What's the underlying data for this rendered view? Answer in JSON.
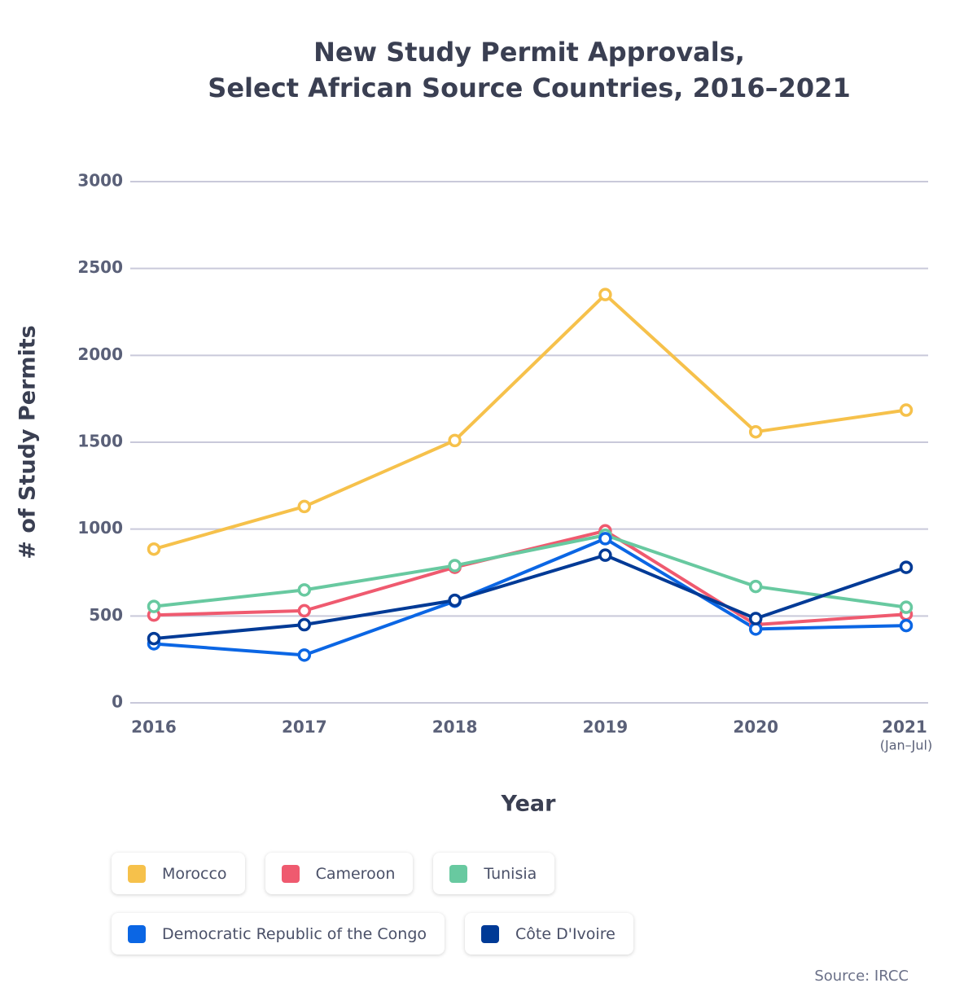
{
  "chart_data": {
    "type": "line",
    "title": "New Study Permit Approvals,\nSelect African Source Countries, 2016–2021",
    "x_label": "Year",
    "y_label": "# of Study Permits",
    "categories": [
      "2016",
      "2017",
      "2018",
      "2019",
      "2020",
      "2021"
    ],
    "annotations": [
      "(Jan–Jul)"
    ],
    "source": "Source: IRCC",
    "ylim": [
      0,
      3000
    ],
    "yticks": [
      0,
      500,
      1000,
      1500,
      2000,
      2500,
      3000
    ],
    "grid": true,
    "series": [
      {
        "name": "Morocco",
        "color": "#f6c14b",
        "values": [
          885,
          1130,
          1510,
          2350,
          1560,
          1685
        ]
      },
      {
        "name": "Cameroon",
        "color": "#ef5a6f",
        "values": [
          505,
          530,
          780,
          990,
          450,
          510
        ]
      },
      {
        "name": "Tunisia",
        "color": "#68c9a0",
        "values": [
          555,
          650,
          790,
          965,
          670,
          550
        ]
      },
      {
        "name": "Democratic Republic of the Congo",
        "color": "#0b66e4",
        "values": [
          340,
          275,
          585,
          945,
          425,
          445
        ]
      },
      {
        "name": "Côte D'Ivoire",
        "color": "#003a96",
        "values": [
          370,
          450,
          590,
          850,
          485,
          780
        ]
      }
    ]
  }
}
